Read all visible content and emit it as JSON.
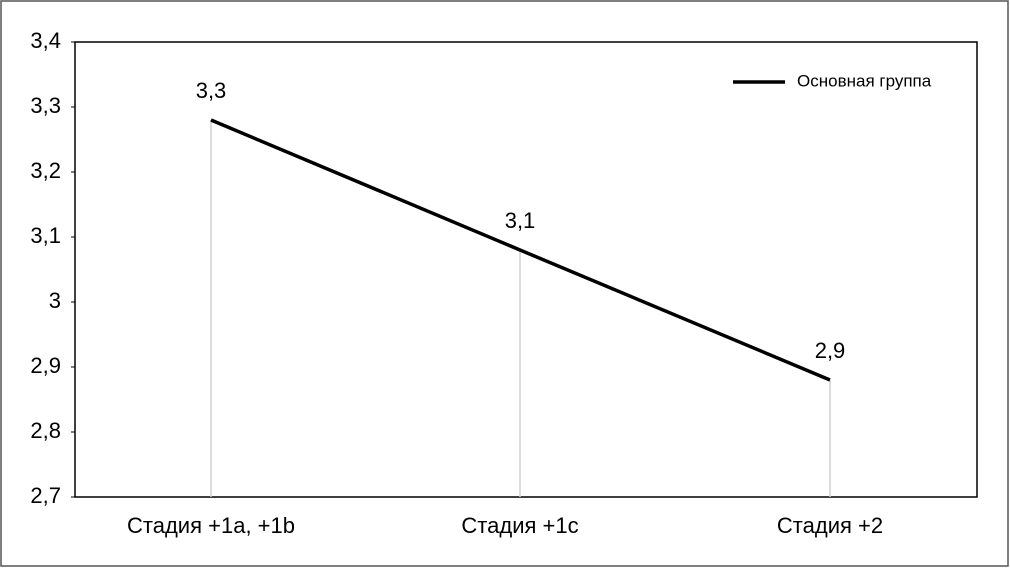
{
  "chart_data": {
    "type": "line",
    "categories": [
      "Стадия +1a, +1b",
      "Стадия +1c",
      "Стадия +2"
    ],
    "series": [
      {
        "name": "Основная группа",
        "color": "#000000",
        "values": [
          3.28,
          3.08,
          2.88
        ],
        "value_labels": [
          "3,3",
          "3,1",
          "2,9"
        ]
      }
    ],
    "ylim": [
      2.7,
      3.4
    ],
    "yticks": [
      {
        "value": 2.7,
        "label": "2,7"
      },
      {
        "value": 2.8,
        "label": "2,8"
      },
      {
        "value": 2.9,
        "label": "2,9"
      },
      3,
      {
        "value": 3.1,
        "label": "3,1"
      },
      {
        "value": 3.2,
        "label": "3,2"
      },
      {
        "value": 3.3,
        "label": "3,3"
      },
      {
        "value": 3.4,
        "label": "3,4"
      }
    ],
    "drop_lines": true,
    "legend": "top-right"
  }
}
